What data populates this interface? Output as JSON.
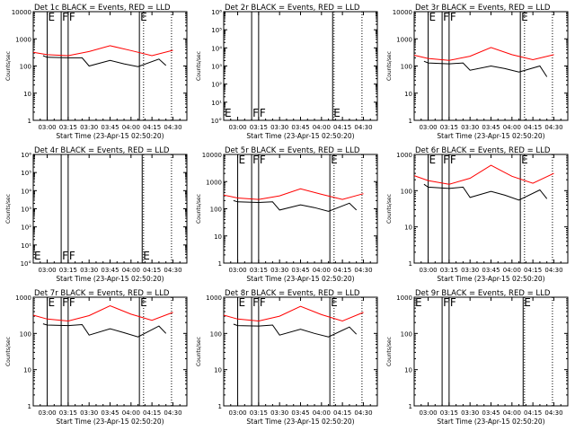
{
  "x_tick_labels": [
    "03:00",
    "03:15",
    "03:30",
    "03:45",
    "04:00",
    "04:15",
    "04:30"
  ],
  "xlabel": "Start Time (23-Apr-15 02:50:20)",
  "ylabel": "Counts/sec",
  "colors": {
    "events": "#000000",
    "lld": "#ff0000",
    "axes": "#000000"
  },
  "chart_data": [
    {
      "type": "line",
      "title": "Det 1c BLACK = Events, RED = LLD",
      "ylim_log10": [
        0,
        4
      ],
      "y_tick_labels": [
        "1",
        "10",
        "100",
        "1000",
        "10000"
      ],
      "markers": [
        {
          "label": "E",
          "x": "03:00"
        },
        {
          "label": "F",
          "x": "03:10"
        },
        {
          "label": "F",
          "x": "03:15"
        },
        {
          "label": "E",
          "x": "04:06"
        }
      ],
      "series": [
        {
          "name": "Events",
          "x": [
            "02:57",
            "03:00",
            "03:15",
            "03:25",
            "03:30",
            "03:45",
            "03:55",
            "04:05",
            "04:20",
            "04:25"
          ],
          "y": [
            240,
            210,
            200,
            200,
            100,
            160,
            120,
            95,
            180,
            105
          ]
        },
        {
          "name": "LLD",
          "x": [
            "02:50",
            "03:00",
            "03:15",
            "03:30",
            "03:45",
            "04:00",
            "04:15",
            "04:30"
          ],
          "y": [
            320,
            260,
            240,
            340,
            560,
            370,
            240,
            380
          ]
        }
      ]
    },
    {
      "type": "line",
      "title": "Det 2r BLACK = Events, RED = LLD",
      "ylim_log10": [
        0,
        6
      ],
      "y_tick_labels": [
        "10°",
        "10¹",
        "10²",
        "10³",
        "10⁴",
        "10⁵",
        "10⁶"
      ],
      "markers": [
        {
          "label": "E",
          "x": "02:50"
        },
        {
          "label": "F",
          "x": "03:10"
        },
        {
          "label": "F",
          "x": "03:15"
        },
        {
          "label": "E",
          "x": "04:08"
        }
      ],
      "series": []
    },
    {
      "type": "line",
      "title": "Det 3r BLACK = Events, RED = LLD",
      "ylim_log10": [
        0,
        4
      ],
      "y_tick_labels": [
        "1",
        "10",
        "100",
        "1000",
        "10000"
      ],
      "markers": [
        {
          "label": "E",
          "x": "03:00"
        },
        {
          "label": "F",
          "x": "03:10"
        },
        {
          "label": "F",
          "x": "03:15"
        },
        {
          "label": "E",
          "x": "04:06"
        }
      ],
      "series": [
        {
          "name": "Events",
          "x": [
            "02:57",
            "03:00",
            "03:15",
            "03:25",
            "03:30",
            "03:45",
            "03:55",
            "04:05",
            "04:20",
            "04:25"
          ],
          "y": [
            150,
            130,
            120,
            130,
            70,
            100,
            80,
            60,
            100,
            40
          ]
        },
        {
          "name": "LLD",
          "x": [
            "02:50",
            "03:00",
            "03:15",
            "03:30",
            "03:45",
            "04:00",
            "04:15",
            "04:30"
          ],
          "y": [
            250,
            190,
            160,
            230,
            480,
            260,
            170,
            260
          ]
        }
      ]
    },
    {
      "type": "line",
      "title": "Det 4r BLACK = Events, RED = LLD",
      "ylim_log10": [
        0,
        6
      ],
      "y_tick_labels": [
        "10°",
        "10¹",
        "10²",
        "10³",
        "10⁴",
        "10⁵",
        "10⁶"
      ],
      "markers": [
        {
          "label": "E",
          "x": "02:50"
        },
        {
          "label": "F",
          "x": "03:10"
        },
        {
          "label": "F",
          "x": "03:15"
        },
        {
          "label": "E",
          "x": "04:08"
        }
      ],
      "series": []
    },
    {
      "type": "line",
      "title": "Det 5r BLACK = Events, RED = LLD",
      "ylim_log10": [
        0,
        4
      ],
      "y_tick_labels": [
        "1",
        "10",
        "100",
        "1000",
        "10000"
      ],
      "markers": [
        {
          "label": "E",
          "x": "03:00"
        },
        {
          "label": "F",
          "x": "03:10"
        },
        {
          "label": "F",
          "x": "03:15"
        },
        {
          "label": "E",
          "x": "04:06"
        }
      ],
      "series": [
        {
          "name": "Events",
          "x": [
            "02:57",
            "03:00",
            "03:15",
            "03:25",
            "03:30",
            "03:45",
            "03:55",
            "04:05",
            "04:20",
            "04:25"
          ],
          "y": [
            200,
            180,
            170,
            180,
            90,
            140,
            110,
            80,
            160,
            90
          ]
        },
        {
          "name": "LLD",
          "x": [
            "02:50",
            "03:00",
            "03:15",
            "03:30",
            "03:45",
            "04:00",
            "04:15",
            "04:30"
          ],
          "y": [
            320,
            250,
            220,
            300,
            540,
            340,
            220,
            360
          ]
        }
      ]
    },
    {
      "type": "line",
      "title": "Det 6r BLACK = Events, RED = LLD",
      "ylim_log10": [
        0,
        3
      ],
      "y_tick_labels": [
        "1",
        "10",
        "100",
        "1000"
      ],
      "markers": [
        {
          "label": "E",
          "x": "03:00"
        },
        {
          "label": "F",
          "x": "03:10"
        },
        {
          "label": "F",
          "x": "03:15"
        },
        {
          "label": "E",
          "x": "04:06"
        }
      ],
      "series": [
        {
          "name": "Events",
          "x": [
            "02:57",
            "03:00",
            "03:15",
            "03:25",
            "03:30",
            "03:45",
            "03:55",
            "04:05",
            "04:20",
            "04:25"
          ],
          "y": [
            150,
            125,
            115,
            125,
            65,
            95,
            75,
            55,
            105,
            60
          ]
        },
        {
          "name": "LLD",
          "x": [
            "02:50",
            "03:00",
            "03:15",
            "03:30",
            "03:45",
            "04:00",
            "04:15",
            "04:30"
          ],
          "y": [
            260,
            190,
            150,
            220,
            500,
            250,
            160,
            300
          ]
        }
      ]
    },
    {
      "type": "line",
      "title": "Det 7r BLACK = Events, RED = LLD",
      "ylim_log10": [
        0,
        3
      ],
      "y_tick_labels": [
        "1",
        "10",
        "100",
        "1000"
      ],
      "markers": [
        {
          "label": "E",
          "x": "03:00"
        },
        {
          "label": "F",
          "x": "03:10"
        },
        {
          "label": "F",
          "x": "03:15"
        },
        {
          "label": "E",
          "x": "04:06"
        }
      ],
      "series": [
        {
          "name": "Events",
          "x": [
            "02:57",
            "03:00",
            "03:15",
            "03:25",
            "03:30",
            "03:45",
            "03:55",
            "04:05",
            "04:20",
            "04:25"
          ],
          "y": [
            185,
            170,
            165,
            175,
            90,
            135,
            105,
            80,
            160,
            100
          ]
        },
        {
          "name": "LLD",
          "x": [
            "02:50",
            "03:00",
            "03:15",
            "03:30",
            "03:45",
            "04:00",
            "04:15",
            "04:30"
          ],
          "y": [
            320,
            250,
            220,
            310,
            580,
            340,
            230,
            380
          ]
        }
      ]
    },
    {
      "type": "line",
      "title": "Det 8r BLACK = Events, RED = LLD",
      "ylim_log10": [
        0,
        3
      ],
      "y_tick_labels": [
        "1",
        "10",
        "100",
        "1000"
      ],
      "markers": [
        {
          "label": "E",
          "x": "03:00"
        },
        {
          "label": "F",
          "x": "03:10"
        },
        {
          "label": "F",
          "x": "03:15"
        },
        {
          "label": "E",
          "x": "04:06"
        }
      ],
      "series": [
        {
          "name": "Events",
          "x": [
            "02:57",
            "03:00",
            "03:15",
            "03:25",
            "03:30",
            "03:45",
            "03:55",
            "04:05",
            "04:20",
            "04:25"
          ],
          "y": [
            180,
            165,
            160,
            170,
            90,
            130,
            100,
            80,
            150,
            95
          ]
        },
        {
          "name": "LLD",
          "x": [
            "02:50",
            "03:00",
            "03:15",
            "03:30",
            "03:45",
            "04:00",
            "04:15",
            "04:30"
          ],
          "y": [
            320,
            250,
            220,
            300,
            560,
            330,
            220,
            380
          ]
        }
      ]
    },
    {
      "type": "line",
      "title": "Det 9r BLACK = Events, RED = LLD",
      "ylim_log10": [
        0,
        3
      ],
      "y_tick_labels": [
        "1",
        "10",
        "100",
        "1000"
      ],
      "markers": [
        {
          "label": "E",
          "x": "02:50"
        },
        {
          "label": "F",
          "x": "03:10"
        },
        {
          "label": "F",
          "x": "03:15"
        },
        {
          "label": "E",
          "x": "04:08"
        }
      ],
      "series": []
    }
  ]
}
